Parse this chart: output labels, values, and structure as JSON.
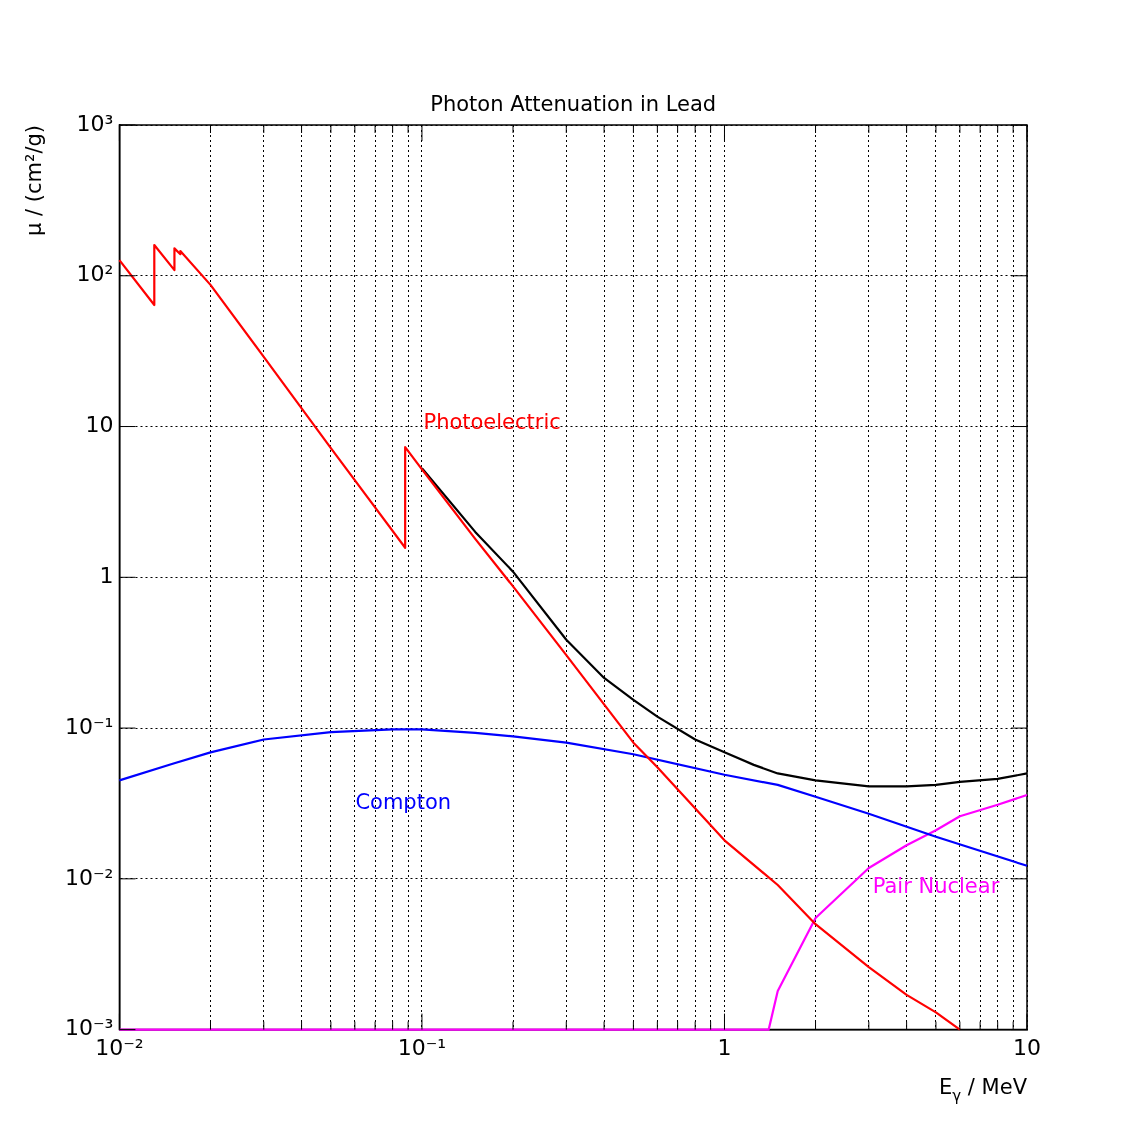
{
  "chart_data": {
    "type": "line",
    "title": "Photon Attenuation in Lead",
    "xlabel": "E$_{γ}$ / MeV",
    "ylabel": "μ / (cm²/g)",
    "log": "xy",
    "grid": true,
    "legend": false,
    "marker": "none",
    "line_style": "solid",
    "xlim": [
      0.01,
      10
    ],
    "ylim": [
      0.001,
      1000
    ],
    "xticks": [
      {
        "value": 0.01,
        "label": "10⁻²"
      },
      {
        "value": 0.02,
        "label": null
      },
      {
        "value": 0.03,
        "label": null
      },
      {
        "value": 0.04,
        "label": null
      },
      {
        "value": 0.05,
        "label": null
      },
      {
        "value": 0.06,
        "label": null
      },
      {
        "value": 0.07,
        "label": null
      },
      {
        "value": 0.08,
        "label": null
      },
      {
        "value": 0.09,
        "label": null
      },
      {
        "value": 0.1,
        "label": "10⁻¹"
      },
      {
        "value": 0.2,
        "label": null
      },
      {
        "value": 0.3,
        "label": null
      },
      {
        "value": 0.4,
        "label": null
      },
      {
        "value": 0.5,
        "label": null
      },
      {
        "value": 0.6,
        "label": null
      },
      {
        "value": 0.7,
        "label": null
      },
      {
        "value": 0.8,
        "label": null
      },
      {
        "value": 0.9,
        "label": null
      },
      1,
      {
        "value": 2,
        "label": null
      },
      {
        "value": 3,
        "label": null
      },
      {
        "value": 4,
        "label": null
      },
      {
        "value": 5,
        "label": null
      },
      {
        "value": 6,
        "label": null
      },
      {
        "value": 7,
        "label": null
      },
      {
        "value": 8,
        "label": null
      },
      {
        "value": 9,
        "label": null
      },
      10
    ],
    "yticks": [
      {
        "value": 0.001,
        "label": "10⁻³"
      },
      {
        "value": 0.01,
        "label": "10⁻²"
      },
      {
        "value": 0.1,
        "label": "10⁻¹"
      },
      1,
      10,
      {
        "value": 100,
        "label": "10²"
      },
      {
        "value": 1000,
        "label": "10³"
      }
    ],
    "series": [
      {
        "name": "Photoelectric",
        "color": "#ff0000",
        "x": [
          0.01,
          0.01304,
          0.01304,
          0.0152,
          0.0152,
          0.0159,
          0.0159,
          0.02,
          0.03,
          0.05,
          0.088,
          0.088,
          0.1,
          0.15,
          0.2,
          0.3,
          0.5,
          0.6,
          1,
          1.5,
          2,
          3,
          4,
          5,
          6
        ],
        "values": [
          127,
          64,
          160,
          109,
          152,
          139,
          146,
          87,
          29,
          7.2,
          1.57,
          7.3,
          5.2,
          1.8,
          0.87,
          0.305,
          0.08,
          0.055,
          0.018,
          0.0091,
          0.005,
          0.0026,
          0.0017,
          0.0013,
          0.001
        ]
      },
      {
        "name": "Compton",
        "color": "#0000ff",
        "x": [
          0.01,
          0.015,
          0.02,
          0.03,
          0.05,
          0.08,
          0.1,
          0.15,
          0.2,
          0.3,
          0.5,
          1,
          1.5,
          2,
          3,
          5,
          10
        ],
        "values": [
          0.045,
          0.058,
          0.069,
          0.084,
          0.094,
          0.098,
          0.098,
          0.093,
          0.088,
          0.08,
          0.067,
          0.049,
          0.042,
          0.035,
          0.027,
          0.019,
          0.0122
        ]
      },
      {
        "name": "Pair Nuclear",
        "color": "#ff00ff",
        "x": [
          0.01,
          1.4,
          1.5,
          2,
          3,
          4,
          5,
          6,
          8,
          10
        ],
        "values": [
          0.001,
          0.001,
          0.0018,
          0.0055,
          0.0118,
          0.0167,
          0.021,
          0.026,
          0.031,
          0.036
        ]
      },
      {
        "color": "#000000",
        "x": [
          0.1,
          0.15,
          0.2,
          0.3,
          0.4,
          0.5,
          0.6,
          0.8,
          1,
          1.25,
          1.5,
          2,
          3,
          4,
          5,
          6,
          8,
          10
        ],
        "values": [
          5.3,
          2.0,
          1.09,
          0.385,
          0.215,
          0.154,
          0.119,
          0.084,
          0.069,
          0.057,
          0.05,
          0.045,
          0.041,
          0.041,
          0.042,
          0.044,
          0.046,
          0.05
        ]
      }
    ]
  }
}
